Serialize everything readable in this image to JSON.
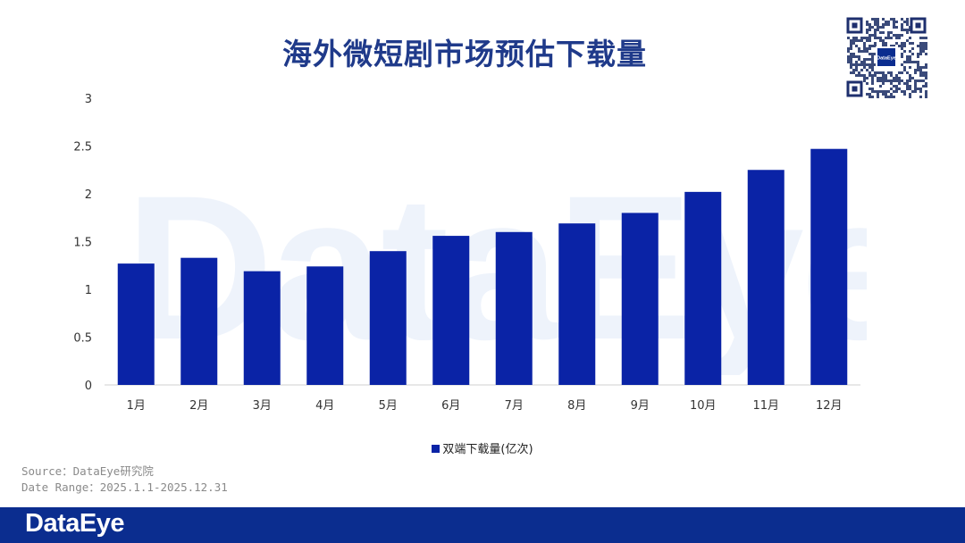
{
  "header": {
    "title": "海外微短剧市场预估下载量"
  },
  "watermark": {
    "text": "DataEye"
  },
  "qr": {
    "center_label": "DataEye"
  },
  "source": {
    "line1": "Source：DataEye研究院",
    "line2": "Date Range：2025.1.1-2025.12.31"
  },
  "footer": {
    "brand": "DataEye"
  },
  "colors": {
    "bar": "#0a23a6",
    "title": "#1f3a8a",
    "footer": "#0b2d8f"
  },
  "chart_data": {
    "type": "bar",
    "categories": [
      "1月",
      "2月",
      "3月",
      "4月",
      "5月",
      "6月",
      "7月",
      "8月",
      "9月",
      "10月",
      "11月",
      "12月"
    ],
    "series": [
      {
        "name": "双端下载量(亿次)",
        "values": [
          1.27,
          1.33,
          1.19,
          1.24,
          1.4,
          1.56,
          1.6,
          1.69,
          1.8,
          2.02,
          2.25,
          2.47
        ]
      }
    ],
    "yticks": [
      "0",
      "0.5",
      "1",
      "1.5",
      "2",
      "2.5",
      "3"
    ],
    "ylim": [
      0,
      3
    ],
    "grid": false,
    "legend_position": "bottom"
  }
}
